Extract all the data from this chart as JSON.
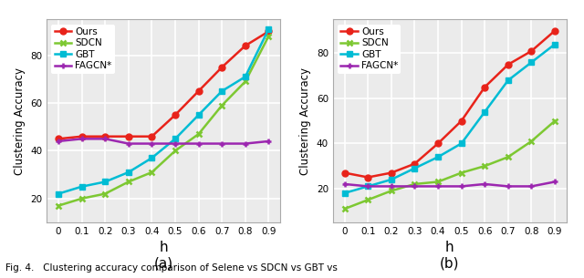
{
  "h_values": [
    0,
    0.1,
    0.2,
    0.3,
    0.4,
    0.5,
    0.6,
    0.7,
    0.8,
    0.9
  ],
  "plot_a": {
    "ours": [
      45,
      46,
      46,
      46,
      46,
      55,
      65,
      75,
      84,
      90
    ],
    "sdcn": [
      17,
      20,
      22,
      27,
      31,
      40,
      47,
      59,
      69,
      88
    ],
    "gbt": [
      22,
      25,
      27,
      31,
      37,
      45,
      55,
      65,
      71,
      91
    ],
    "fagcn": [
      44,
      45,
      45,
      43,
      43,
      43,
      43,
      43,
      43,
      44
    ]
  },
  "plot_b": {
    "ours": [
      27,
      25,
      27,
      31,
      40,
      50,
      65,
      75,
      81,
      90
    ],
    "sdcn": [
      11,
      15,
      19,
      22,
      23,
      27,
      30,
      34,
      41,
      50
    ],
    "gbt": [
      18,
      21,
      24,
      29,
      34,
      40,
      54,
      68,
      76,
      84
    ],
    "fagcn": [
      22,
      21,
      21,
      21,
      21,
      21,
      22,
      21,
      21,
      23
    ]
  },
  "colors": {
    "ours": "#e8231a",
    "sdcn": "#7dc832",
    "gbt": "#00bcd4",
    "fagcn": "#9c27b0"
  },
  "markers": {
    "ours": "o",
    "sdcn": "x",
    "gbt": "s",
    "fagcn": "+"
  },
  "labels": {
    "ours": "Ours",
    "sdcn": "SDCN",
    "gbt": "GBT",
    "fagcn": "FAGCN*"
  },
  "ylabel": "Clustering Accuracy",
  "xlabel": "h",
  "title_a": "(a)",
  "title_b": "(b)",
  "caption": "Fig. 4.   Clustering accuracy comparison of Selene vs SDCN vs GBT vs",
  "background_color": "#ebebeb",
  "ylim_a": [
    10,
    95
  ],
  "ylim_b": [
    5,
    95
  ],
  "yticks_a": [
    20,
    40,
    60,
    80
  ],
  "yticks_b": [
    20,
    40,
    60,
    80
  ],
  "linewidth": 1.8,
  "markersize": 5
}
